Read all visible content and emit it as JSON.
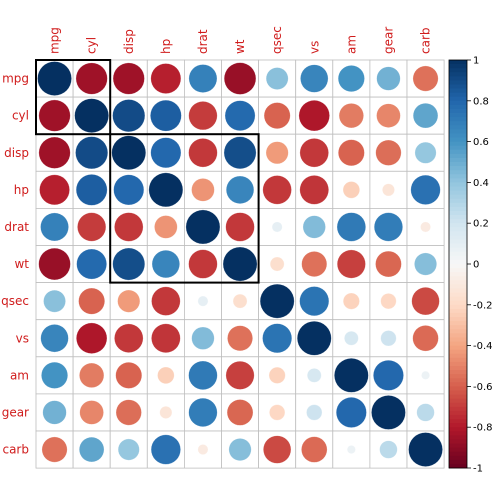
{
  "chart_data": {
    "type": "heatmap",
    "style": "corrplot-circle",
    "variables": [
      "mpg",
      "cyl",
      "disp",
      "hp",
      "drat",
      "wt",
      "qsec",
      "vs",
      "am",
      "gear",
      "carb"
    ],
    "matrix": [
      [
        1.0,
        -0.85,
        -0.85,
        -0.78,
        0.68,
        -0.87,
        0.42,
        0.66,
        0.6,
        0.48,
        -0.55
      ],
      [
        -0.85,
        1.0,
        0.9,
        0.83,
        -0.7,
        0.78,
        -0.59,
        -0.81,
        -0.52,
        -0.49,
        0.53
      ],
      [
        -0.85,
        0.9,
        1.0,
        0.79,
        -0.71,
        0.89,
        -0.43,
        -0.71,
        -0.59,
        -0.56,
        0.39
      ],
      [
        -0.78,
        0.83,
        0.79,
        1.0,
        -0.45,
        0.66,
        -0.71,
        -0.72,
        -0.24,
        -0.13,
        0.75
      ],
      [
        0.68,
        -0.7,
        -0.71,
        -0.45,
        1.0,
        -0.71,
        0.09,
        0.44,
        0.71,
        0.7,
        -0.09
      ],
      [
        -0.87,
        0.78,
        0.89,
        0.66,
        -0.71,
        1.0,
        -0.17,
        -0.55,
        -0.69,
        -0.58,
        0.43
      ],
      [
        0.42,
        -0.59,
        -0.43,
        -0.71,
        0.09,
        -0.17,
        1.0,
        0.74,
        -0.23,
        -0.21,
        -0.66
      ],
      [
        0.66,
        -0.81,
        -0.71,
        -0.72,
        0.44,
        -0.55,
        0.74,
        1.0,
        0.17,
        0.21,
        -0.57
      ],
      [
        0.6,
        -0.52,
        -0.59,
        -0.24,
        0.71,
        -0.69,
        -0.23,
        0.17,
        1.0,
        0.79,
        0.06
      ],
      [
        0.48,
        -0.49,
        -0.56,
        -0.13,
        0.7,
        -0.58,
        -0.21,
        0.21,
        0.79,
        1.0,
        0.27
      ],
      [
        -0.55,
        0.53,
        0.39,
        0.75,
        -0.09,
        0.43,
        -0.66,
        -0.57,
        0.06,
        0.27,
        1.0
      ]
    ],
    "clusters": [
      [
        0,
        1
      ],
      [
        2,
        5
      ]
    ],
    "colorbar": {
      "range": [
        -1,
        1
      ],
      "ticks": [
        "1",
        "0.8",
        "0.6",
        "0.4",
        "0.2",
        "0",
        "-0.2",
        "-0.4",
        "-0.6",
        "-0.8",
        "-1"
      ]
    },
    "colors": {
      "negative_end": "#67001f",
      "positive_end": "#053061",
      "label": "#d01c1c",
      "grid": "#bebebe",
      "cluster_border": "#000000"
    },
    "legend": "right"
  }
}
